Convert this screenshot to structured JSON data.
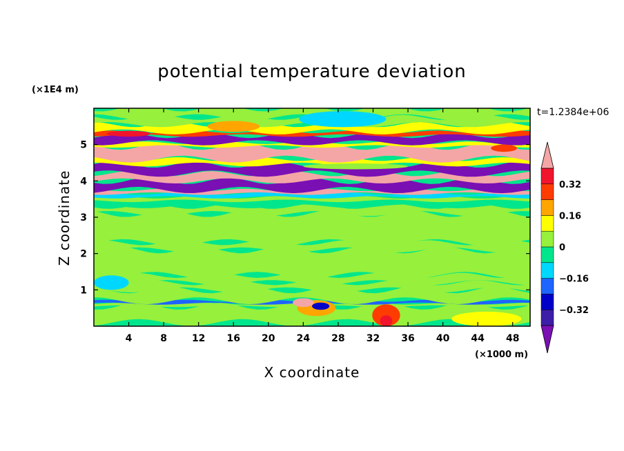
{
  "chart_data": {
    "type": "heatmap",
    "title": "potential temperature deviation",
    "xlabel": "X coordinate",
    "ylabel": "Z coordinate",
    "x_unit": "(×1000 m)",
    "y_unit": "(×1E4 m)",
    "time_label": "t=1.2384e+06",
    "xlim": [
      0,
      50
    ],
    "ylim": [
      0,
      6
    ],
    "x_ticks": [
      4,
      8,
      12,
      16,
      20,
      24,
      28,
      32,
      36,
      40,
      44,
      48
    ],
    "y_ticks": [
      1,
      2,
      3,
      4,
      5
    ],
    "colorbar": {
      "levels": [
        -0.4,
        -0.32,
        -0.24,
        -0.16,
        -0.08,
        0,
        0.08,
        0.16,
        0.24,
        0.32,
        0.4
      ],
      "tick_values": [
        0.32,
        0.16,
        0,
        -0.16,
        -0.32
      ],
      "tick_labels": [
        "0.32",
        "0.16",
        "0",
        "−0.16",
        "−0.32"
      ],
      "colors": [
        "#7a0fb4",
        "#3c1ea8",
        "#0000c8",
        "#1e64ff",
        "#00d7ff",
        "#00e68c",
        "#96f03c",
        "#ffff00",
        "#ffa500",
        "#ff3c00",
        "#f0142d",
        "#f4a6a6"
      ],
      "extend": "both"
    },
    "bands": [
      {
        "z": [
          0.0,
          0.1
        ],
        "value": -0.06
      },
      {
        "z": [
          0.1,
          0.55
        ],
        "value": 0.06
      },
      {
        "z": [
          0.55,
          0.62
        ],
        "value": 0.05
      },
      {
        "z": [
          0.62,
          0.7
        ],
        "value": -0.2
      },
      {
        "z": [
          0.7,
          1.0
        ],
        "value": 0.05
      },
      {
        "z": [
          1.0,
          1.2
        ],
        "value": 0.0
      },
      {
        "z": [
          1.2,
          1.4
        ],
        "value": 0.06
      },
      {
        "z": [
          1.4,
          2.1
        ],
        "value": 0.0
      },
      {
        "z": [
          2.1,
          2.3
        ],
        "value": 0.06
      },
      {
        "z": [
          2.3,
          3.1
        ],
        "value": 0.0
      },
      {
        "z": [
          3.1,
          3.3
        ],
        "value": 0.06
      },
      {
        "z": [
          3.3,
          3.45
        ],
        "value": -0.06
      },
      {
        "z": [
          3.45,
          3.55
        ],
        "value": 0.06
      },
      {
        "z": [
          3.55,
          3.65
        ],
        "value": -0.1
      },
      {
        "z": [
          3.65,
          3.75
        ],
        "value": 0.42
      },
      {
        "z": [
          3.75,
          4.0
        ],
        "value": -0.42
      },
      {
        "z": [
          4.0,
          4.2
        ],
        "value": 0.42
      },
      {
        "z": [
          4.2,
          4.45
        ],
        "value": -0.42
      },
      {
        "z": [
          4.45,
          4.6
        ],
        "value": 0.1
      },
      {
        "z": [
          4.6,
          4.95
        ],
        "value": 0.42
      },
      {
        "z": [
          4.95,
          5.05
        ],
        "value": 0.12
      },
      {
        "z": [
          5.05,
          5.25
        ],
        "value": -0.42
      },
      {
        "z": [
          5.25,
          5.35
        ],
        "value": 0.3
      },
      {
        "z": [
          5.35,
          5.55
        ],
        "value": 0.12
      },
      {
        "z": [
          5.55,
          5.75
        ],
        "value": 0.05
      },
      {
        "z": [
          5.75,
          6.0
        ],
        "value": 0.03
      }
    ],
    "features": [
      {
        "x": 33.5,
        "z": 0.3,
        "rx": 1.6,
        "rz": 0.3,
        "value": 0.3
      },
      {
        "x": 33.5,
        "z": 0.15,
        "rx": 0.7,
        "rz": 0.15,
        "value": 0.36
      },
      {
        "x": 25.5,
        "z": 0.5,
        "rx": 2.2,
        "rz": 0.22,
        "value": 0.2
      },
      {
        "x": 26.0,
        "z": 0.55,
        "rx": 1.0,
        "rz": 0.1,
        "value": -0.3
      },
      {
        "x": 24.0,
        "z": 0.65,
        "rx": 1.2,
        "rz": 0.12,
        "value": 0.42
      },
      {
        "x": 45.0,
        "z": 0.2,
        "rx": 4.0,
        "rz": 0.2,
        "value": 0.12
      },
      {
        "x": 16.0,
        "z": 5.5,
        "rx": 3.0,
        "rz": 0.15,
        "value": 0.16
      },
      {
        "x": 47.0,
        "z": 4.9,
        "rx": 1.5,
        "rz": 0.1,
        "value": 0.28
      },
      {
        "x": 4.0,
        "z": 5.3,
        "rx": 2.5,
        "rz": 0.08,
        "value": 0.32
      },
      {
        "x": 28.5,
        "z": 5.7,
        "rx": 5.0,
        "rz": 0.22,
        "value": -0.1
      },
      {
        "x": 30.0,
        "z": 4.4,
        "rx": 6.0,
        "rz": 0.08,
        "value": 0.0
      },
      {
        "x": 2.0,
        "z": 1.2,
        "rx": 2.0,
        "rz": 0.2,
        "value": -0.12
      }
    ]
  }
}
